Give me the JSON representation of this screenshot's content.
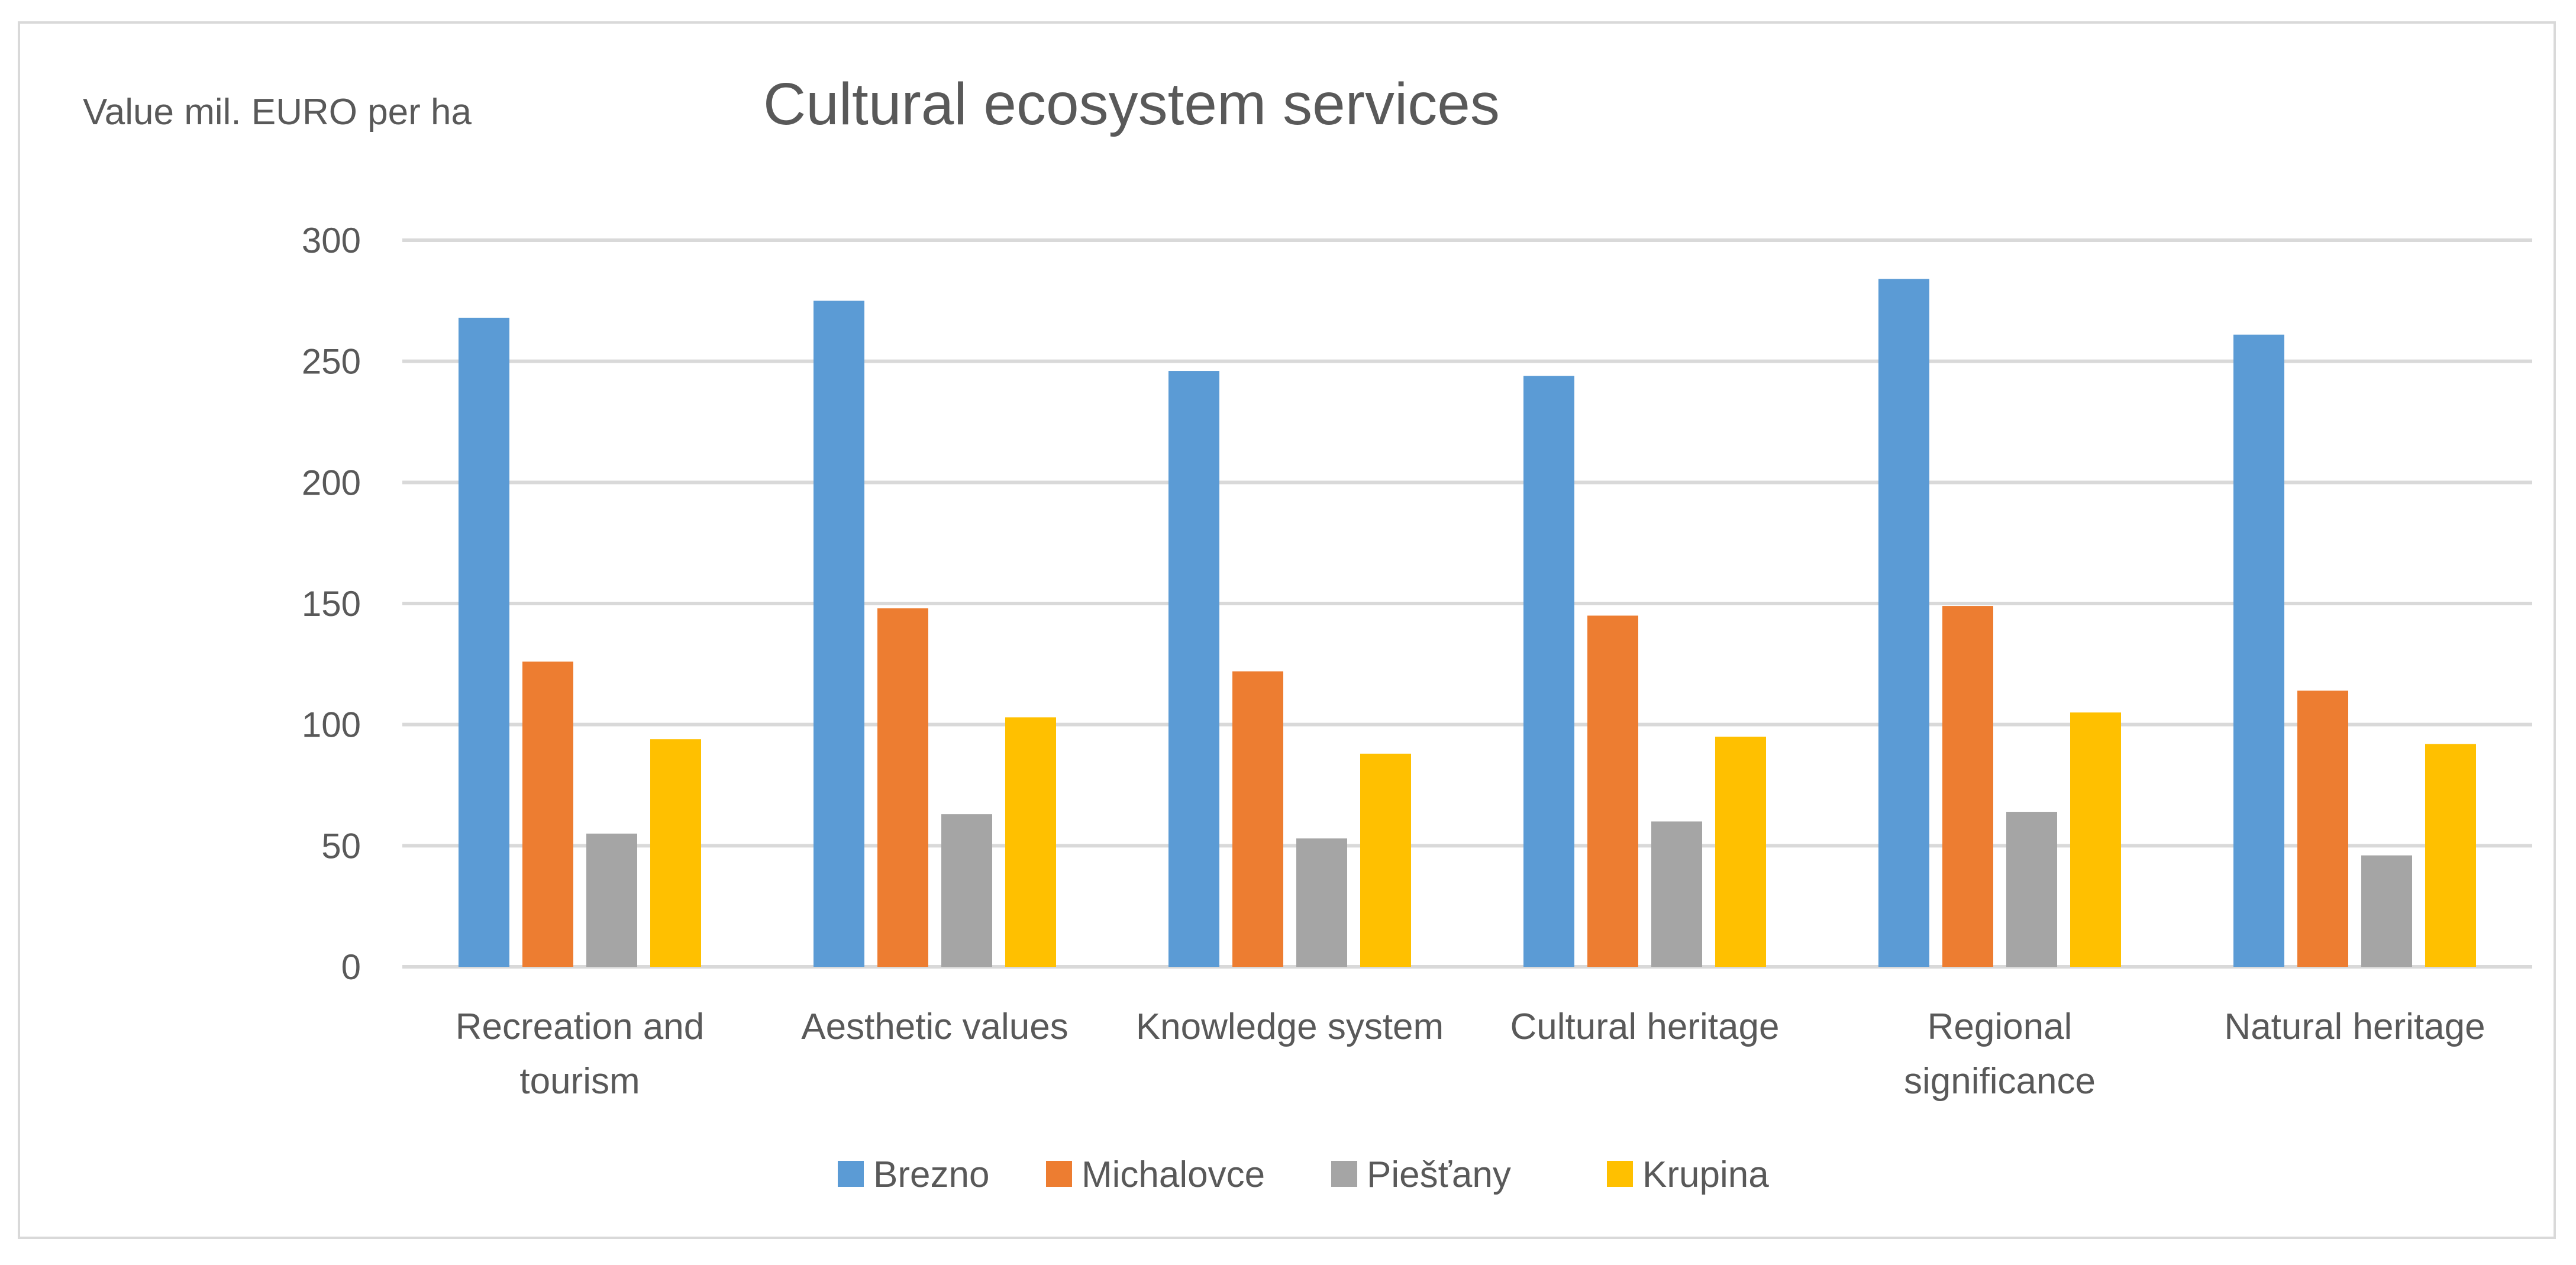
{
  "chart_data": {
    "type": "bar",
    "title": "Cultural ecosystem services",
    "ylabel": "Value mil. EURO per ha",
    "xlabel": "",
    "ylim": [
      0,
      300
    ],
    "yticks": [
      0,
      50,
      100,
      150,
      200,
      250,
      300
    ],
    "grid": true,
    "legend_position": "bottom",
    "categories": [
      [
        "Recreation and",
        "tourism"
      ],
      [
        "Aesthetic values"
      ],
      [
        "Knowledge system"
      ],
      [
        "Cultural heritage"
      ],
      [
        "Regional",
        "significance"
      ],
      [
        "Natural heritage"
      ]
    ],
    "series": [
      {
        "name": "Brezno",
        "color": "#5b9bd5",
        "values": [
          268,
          275,
          246,
          244,
          284,
          261
        ]
      },
      {
        "name": "Michalovce",
        "color": "#ed7d31",
        "values": [
          126,
          148,
          122,
          145,
          149,
          114
        ]
      },
      {
        "name": "Piešťany",
        "color": "#a5a5a5",
        "values": [
          55,
          63,
          53,
          60,
          64,
          46
        ]
      },
      {
        "name": "Krupina",
        "color": "#ffc000",
        "values": [
          94,
          103,
          88,
          95,
          105,
          92
        ]
      }
    ]
  }
}
